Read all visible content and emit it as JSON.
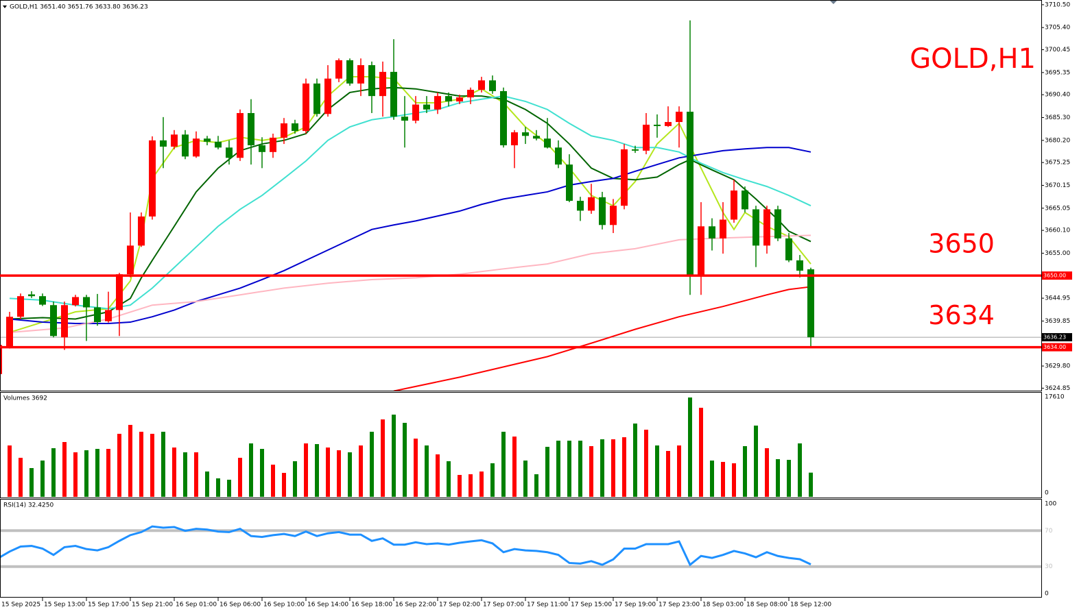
{
  "chart_data": {
    "type": "candlestick",
    "header": "GOLD,H1  3651.40 3651.76 3633.80 3636.23",
    "watermark": "GOLD,H1",
    "categories": [
      "15 Sep 2025",
      null,
      null,
      null,
      "15 Sep 13:00",
      null,
      null,
      null,
      "15 Sep 17:00",
      null,
      null,
      null,
      "15 Sep 21:00",
      null,
      null,
      null,
      "16 Sep 01:00",
      null,
      null,
      null,
      "16 Sep 06:00",
      null,
      null,
      null,
      "16 Sep 10:00",
      null,
      null,
      null,
      "16 Sep 14:00",
      null,
      null,
      null,
      "16 Sep 18:00",
      null,
      null,
      null,
      "16 Sep 22:00",
      null,
      null,
      null,
      "17 Sep 02:00",
      null,
      null,
      null,
      "17 Sep 07:00",
      null,
      null,
      null,
      "17 Sep 11:00",
      null,
      null,
      null,
      "17 Sep 15:00",
      null,
      null,
      null,
      "17 Sep 19:00",
      null,
      null,
      null,
      "17 Sep 23:00",
      null,
      null,
      null,
      "18 Sep 03:00",
      null,
      null,
      null,
      "18 Sep 08:00",
      null,
      null,
      null,
      "18 Sep 12:00",
      null,
      null
    ],
    "open": [
      3628.0,
      3634.0,
      3640.8,
      3645.8,
      3645.4,
      3643.4,
      3636.2,
      3643.4,
      3645.2,
      3642.9,
      3639.8,
      3642.3,
      3650.3,
      3656.7,
      3663.2,
      3680.2,
      3678.8,
      3681.5,
      3676.6,
      3680.6,
      3679.9,
      3678.6,
      3676.3,
      3686.3,
      3679.1,
      3677.6,
      3680.8,
      3684.0,
      3682.3,
      3692.9,
      3686.1,
      3694.0,
      3698.1,
      3692.9,
      3697.0,
      3690.1,
      3695.5,
      3685.5,
      3684.6,
      3688.2,
      3687.1,
      3690.1,
      3688.9,
      3689.8,
      3691.5,
      3693.6,
      3691.2,
      3679.1,
      3682.0,
      3681.2,
      3680.6,
      3678.6,
      3674.8,
      3666.7,
      3664.5,
      3667.5,
      3661.3,
      3665.6,
      3678.2,
      3677.9,
      3683.7,
      3683.4,
      3684.3,
      3686.6,
      3649.8,
      3661.0,
      3658.3,
      3662.5,
      3669.0,
      3664.8,
      3656.7,
      3664.8,
      3658.3,
      3653.4,
      3651.4
    ],
    "high": [
      3637.0,
      3641.9,
      3646.0,
      3646.5,
      3646.0,
      3644.2,
      3644.2,
      3645.7,
      3645.7,
      3645.9,
      3646.4,
      3650.6,
      3664.1,
      3664.1,
      3681.1,
      3685.4,
      3682.5,
      3682.5,
      3682.2,
      3681.2,
      3681.2,
      3680.2,
      3687.1,
      3689.4,
      3680.9,
      3681.7,
      3685.2,
      3684.8,
      3694.0,
      3694.0,
      3697.0,
      3698.5,
      3698.5,
      3698.5,
      3697.8,
      3697.8,
      3702.8,
      3690.1,
      3690.1,
      3690.1,
      3690.9,
      3690.9,
      3690.4,
      3692.0,
      3694.4,
      3694.7,
      3692.0,
      3682.5,
      3683.2,
      3682.5,
      3685.2,
      3680.2,
      3677.1,
      3667.6,
      3670.5,
      3668.7,
      3667.1,
      3679.4,
      3679.0,
      3686.3,
      3686.0,
      3687.8,
      3687.8,
      3707.0,
      3666.4,
      3662.8,
      3666.4,
      3671.4,
      3669.9,
      3665.6,
      3665.6,
      3665.6,
      3659.5,
      3654.6,
      3651.76
    ],
    "low": [
      3626.5,
      3633.7,
      3640.3,
      3645.0,
      3643.2,
      3636.2,
      3633.4,
      3643.1,
      3635.4,
      3638.8,
      3639.5,
      3636.5,
      3649.6,
      3656.4,
      3662.5,
      3674.0,
      3678.2,
      3676.0,
      3676.3,
      3679.1,
      3678.2,
      3674.8,
      3675.6,
      3674.8,
      3674.0,
      3676.3,
      3679.4,
      3681.7,
      3681.7,
      3685.5,
      3685.5,
      3693.2,
      3692.4,
      3690.1,
      3686.3,
      3685.5,
      3684.8,
      3678.6,
      3684.0,
      3686.3,
      3686.1,
      3687.8,
      3688.3,
      3688.3,
      3690.9,
      3690.6,
      3678.6,
      3674.0,
      3679.4,
      3680.2,
      3678.4,
      3674.0,
      3666.4,
      3662.2,
      3663.8,
      3660.3,
      3659.5,
      3664.8,
      3677.4,
      3677.1,
      3680.8,
      3683.2,
      3678.6,
      3645.7,
      3645.7,
      3655.6,
      3654.9,
      3661.8,
      3664.1,
      3651.9,
      3654.9,
      3657.7,
      3653.0,
      3649.6,
      3633.8
    ],
    "close": [
      3634.5,
      3640.8,
      3645.4,
      3645.4,
      3643.5,
      3636.5,
      3643.4,
      3645.2,
      3642.9,
      3639.6,
      3642.3,
      3650.3,
      3656.7,
      3663.2,
      3680.2,
      3678.8,
      3681.5,
      3676.6,
      3680.6,
      3679.9,
      3678.6,
      3676.3,
      3686.3,
      3679.1,
      3677.6,
      3680.8,
      3684.0,
      3682.3,
      3692.9,
      3686.1,
      3694.0,
      3698.1,
      3692.9,
      3697.0,
      3690.1,
      3695.5,
      3685.5,
      3684.6,
      3688.2,
      3687.1,
      3690.1,
      3688.9,
      3689.8,
      3691.5,
      3693.6,
      3691.2,
      3679.1,
      3682.0,
      3681.2,
      3680.6,
      3678.6,
      3674.8,
      3666.7,
      3664.5,
      3667.5,
      3661.3,
      3665.6,
      3678.2,
      3677.9,
      3683.7,
      3683.4,
      3684.3,
      3686.6,
      3649.8,
      3661.0,
      3658.3,
      3662.5,
      3669.0,
      3664.8,
      3656.7,
      3664.8,
      3658.3,
      3653.4,
      3651.1,
      3636.23
    ],
    "up_color": "#ff0000",
    "down_color": "#008000",
    "ylim": [
      3624.3,
      3711.4
    ],
    "yticks": [
      {
        "value": 3710.5,
        "label": "3710.50"
      },
      {
        "value": 3705.4,
        "label": "3705.40"
      },
      {
        "value": 3700.45,
        "label": "3700.45"
      },
      {
        "value": 3695.35,
        "label": "3695.35"
      },
      {
        "value": 3690.4,
        "label": "3690.40"
      },
      {
        "value": 3685.3,
        "label": "3685.30"
      },
      {
        "value": 3680.2,
        "label": "3680.20"
      },
      {
        "value": 3675.25,
        "label": "3675.25"
      },
      {
        "value": 3670.15,
        "label": "3670.15"
      },
      {
        "value": 3665.05,
        "label": "3665.05"
      },
      {
        "value": 3660.1,
        "label": "3660.10"
      },
      {
        "value": 3655.0,
        "label": "3655.00"
      },
      {
        "value": 3644.95,
        "label": "3644.95"
      },
      {
        "value": 3639.85,
        "label": "3639.85"
      },
      {
        "value": 3629.8,
        "label": "3629.80"
      },
      {
        "value": 3624.85,
        "label": "3624.85"
      }
    ],
    "moving_averages": [
      {
        "color": "#b5e61d",
        "x": [
          1,
          4,
          7,
          10,
          12,
          13,
          14,
          16,
          18,
          20,
          22,
          24,
          26,
          28,
          30,
          32,
          34,
          36,
          38,
          40,
          42,
          44,
          46,
          48,
          50,
          52,
          54,
          56,
          58,
          60,
          62,
          64,
          66,
          67,
          68,
          70,
          72,
          74
        ],
        "values": [
          3637.3,
          3639.6,
          3641.9,
          3642.6,
          3648.8,
          3658.0,
          3671.7,
          3678.6,
          3680.2,
          3679.7,
          3680.9,
          3680.2,
          3680.9,
          3683.2,
          3690.1,
          3694.4,
          3694.4,
          3694.0,
          3688.6,
          3688.6,
          3689.4,
          3691.7,
          3688.6,
          3683.2,
          3679.4,
          3674.0,
          3667.9,
          3665.6,
          3671.0,
          3679.4,
          3684.0,
          3674.0,
          3664.1,
          3660.3,
          3664.1,
          3661.0,
          3658.7,
          3652.6
        ]
      },
      {
        "color": "#006400",
        "x": [
          1,
          4,
          7,
          10,
          12,
          13,
          14,
          16,
          18,
          20,
          22,
          24,
          26,
          28,
          30,
          32,
          34,
          36,
          38,
          40,
          42,
          44,
          46,
          48,
          50,
          52,
          54,
          56,
          58,
          60,
          62,
          63,
          65,
          67,
          69,
          71,
          72,
          74
        ],
        "values": [
          3640.3,
          3640.6,
          3640.3,
          3641.9,
          3644.9,
          3649.5,
          3653.4,
          3661.0,
          3668.7,
          3674.0,
          3677.9,
          3679.4,
          3680.2,
          3681.7,
          3687.1,
          3690.9,
          3691.7,
          3692.0,
          3691.7,
          3690.9,
          3690.1,
          3690.1,
          3689.4,
          3687.1,
          3684.0,
          3679.4,
          3674.0,
          3671.7,
          3671.4,
          3672.0,
          3674.8,
          3675.9,
          3673.6,
          3671.4,
          3667.1,
          3662.5,
          3659.9,
          3657.6
        ]
      },
      {
        "color": "#40e0d0",
        "x": [
          1,
          4,
          7,
          10,
          12,
          14,
          16,
          18,
          20,
          22,
          24,
          26,
          28,
          30,
          32,
          34,
          36,
          38,
          40,
          42,
          44,
          46,
          48,
          50,
          52,
          54,
          56,
          58,
          60,
          62,
          64,
          66,
          68,
          70,
          72,
          74
        ],
        "values": [
          3644.9,
          3644.5,
          3643.4,
          3642.6,
          3643.4,
          3647.2,
          3651.8,
          3656.4,
          3661.0,
          3664.8,
          3667.9,
          3671.7,
          3675.6,
          3680.2,
          3683.2,
          3684.8,
          3685.5,
          3686.3,
          3687.1,
          3688.6,
          3689.4,
          3690.1,
          3688.9,
          3687.1,
          3684.0,
          3681.2,
          3680.2,
          3678.6,
          3678.6,
          3677.6,
          3675.1,
          3673.0,
          3671.4,
          3669.9,
          3667.9,
          3665.6
        ]
      },
      {
        "color": "#0000cd",
        "x": [
          1,
          4,
          7,
          10,
          12,
          14,
          16,
          18,
          20,
          22,
          24,
          26,
          28,
          30,
          32,
          34,
          36,
          38,
          40,
          42,
          44,
          46,
          48,
          50,
          52,
          54,
          56,
          58,
          60,
          62,
          64,
          66,
          68,
          70,
          72,
          74
        ],
        "values": [
          3640.3,
          3639.6,
          3639.3,
          3639.3,
          3639.6,
          3640.8,
          3642.3,
          3644.2,
          3645.7,
          3647.2,
          3649.1,
          3651.1,
          3653.4,
          3655.7,
          3658.0,
          3660.3,
          3661.3,
          3662.2,
          3663.3,
          3664.4,
          3665.9,
          3667.1,
          3667.9,
          3668.7,
          3670.2,
          3671.0,
          3671.7,
          3673.3,
          3674.8,
          3676.3,
          3677.1,
          3677.9,
          3678.3,
          3678.6,
          3678.6,
          3677.6
        ]
      },
      {
        "color": "#ffb6c1",
        "x": [
          1,
          6,
          10,
          14,
          18,
          22,
          26,
          30,
          34,
          38,
          42,
          46,
          50,
          54,
          58,
          62,
          66,
          70,
          74
        ],
        "values": [
          3637.3,
          3638.3,
          3640.3,
          3643.4,
          3644.2,
          3645.7,
          3647.2,
          3648.3,
          3649.1,
          3649.5,
          3650.3,
          3651.5,
          3652.6,
          3654.9,
          3656.0,
          3658.0,
          3658.4,
          3658.7,
          3659.0
        ]
      },
      {
        "color": "#ff0000",
        "x": [
          36,
          42,
          46,
          50,
          54,
          58,
          62,
          66,
          70,
          72,
          74
        ],
        "values": [
          3624.2,
          3627.3,
          3629.6,
          3631.9,
          3634.9,
          3638.0,
          3640.8,
          3643.1,
          3645.7,
          3646.9,
          3647.5
        ]
      }
    ],
    "levels": [
      {
        "value": 3650,
        "label": "3650.00"
      },
      {
        "value": 3634,
        "label": "3634.00"
      }
    ],
    "level_color": "#ff0000",
    "bid": {
      "value": 3636.23,
      "label": "3636.23"
    },
    "volume": {
      "title": "Volumes 3692",
      "values": [
        9938,
        8680,
        6416,
        4529,
        5913,
        8177,
        9309,
        7422,
        7800,
        8051,
        8051,
        10819,
        12454,
        11196,
        10819,
        11196,
        8303,
        7422,
        7422,
        3900,
        2642,
        2390,
        6416,
        9058,
        8051,
        5158,
        3648,
        5787,
        9058,
        8932,
        8303,
        7800,
        7422,
        8680,
        11196,
        13461,
        14341,
        12832,
        9938,
        8680,
        7045,
        5787,
        3271,
        3397,
        3900,
        5409,
        11196,
        10316,
        5913,
        3397,
        8429,
        9561,
        9561,
        9561,
        8555,
        9813,
        9813,
        10190,
        12706,
        11574,
        8680,
        7674,
        8680,
        17486,
        15599,
        5913,
        5661,
        5409,
        8555,
        12328,
        8177,
        6164,
        6038,
        9058,
        3692
      ],
      "ylim": [
        0,
        17610
      ],
      "yticks": [
        17610,
        0
      ]
    },
    "rsi": {
      "title": "RSI(14) 32.4250",
      "color": "#1e90ff",
      "values": [
        39.6,
        46.7,
        52.3,
        53,
        50,
        43,
        51.6,
        53,
        49.5,
        48,
        51.6,
        58.6,
        65,
        68.4,
        74.7,
        73.3,
        74,
        69.8,
        72,
        71.2,
        69,
        68.4,
        72,
        64,
        63,
        65,
        66.3,
        64,
        69,
        64,
        67,
        68.4,
        65.6,
        65.6,
        58.6,
        61.4,
        54.4,
        54.4,
        57,
        55,
        55.8,
        54.4,
        56.5,
        58,
        59.3,
        55.8,
        46,
        49.5,
        48,
        47.4,
        46,
        43,
        34,
        33.3,
        36,
        32,
        38,
        50,
        50,
        55,
        55,
        55,
        58,
        32,
        41.8,
        39.6,
        43,
        47.4,
        44.6,
        40.4,
        46,
        41.8,
        39.6,
        38.2,
        32.425
      ],
      "ylim": [
        0,
        100
      ],
      "yticks": [
        100,
        70,
        30,
        0
      ],
      "levels": [
        70,
        30
      ],
      "level_color": "#c0c0c0"
    }
  }
}
